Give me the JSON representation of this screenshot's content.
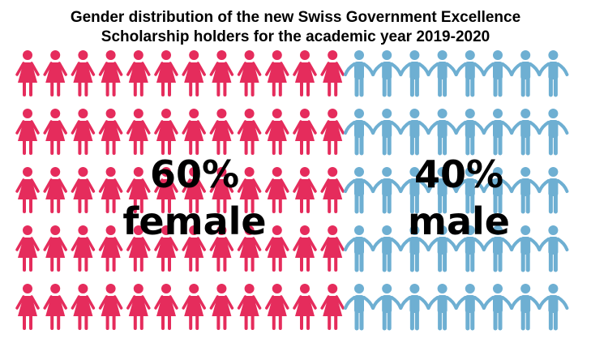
{
  "chart_data": {
    "type": "pictogram",
    "title": "Gender distribution of the new Swiss Government Excellence Scholarship holders for the academic year 2019-2020",
    "title_lines": [
      "Gender distribution of the new Swiss Government Excellence",
      "Scholarship holders for the academic year 2019-2020"
    ],
    "categories": [
      "female",
      "male"
    ],
    "values": [
      60,
      40
    ],
    "unit": "%",
    "labels": [
      {
        "percent": "60%",
        "text": "female"
      },
      {
        "percent": "40%",
        "text": "male"
      }
    ],
    "icon_rows": 5,
    "icons_per_row": [
      12,
      8
    ],
    "icons": [
      "female-person-icon",
      "male-person-icon"
    ],
    "colors": [
      "#e52c5c",
      "#6eafd2"
    ],
    "grid": false,
    "legend": "none"
  }
}
